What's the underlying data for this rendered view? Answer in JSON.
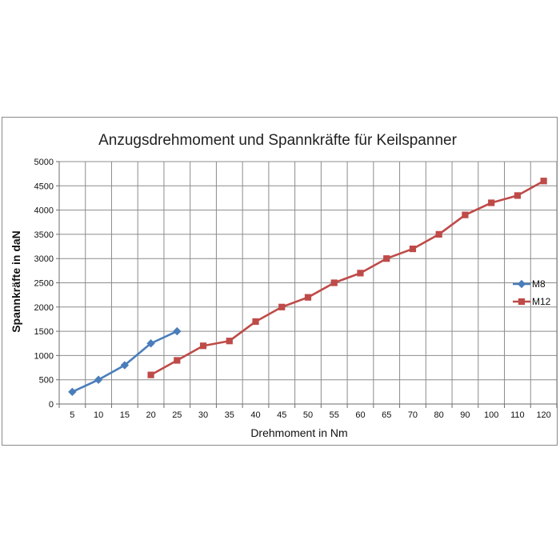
{
  "chart_data": {
    "type": "line",
    "title": "Anzugsdrehmoment und Spannkräfte für Keilspanner",
    "xlabel": "Drehmoment in Nm",
    "ylabel": "Spannkräfte in daN",
    "categories": [
      "5",
      "10",
      "15",
      "20",
      "25",
      "30",
      "35",
      "40",
      "45",
      "50",
      "55",
      "60",
      "65",
      "70",
      "80",
      "90",
      "100",
      "110",
      "120"
    ],
    "ylim": [
      0,
      5000
    ],
    "yticks": [
      "0",
      "500",
      "1000",
      "1500",
      "2000",
      "2500",
      "3000",
      "3500",
      "4000",
      "4500",
      "5000"
    ],
    "grid": true,
    "legend_position": "right",
    "series": [
      {
        "name": "M8",
        "color": "#4a7ebb",
        "marker": "diamond",
        "values": [
          250,
          500,
          800,
          1250,
          1500,
          null,
          null,
          null,
          null,
          null,
          null,
          null,
          null,
          null,
          null,
          null,
          null,
          null,
          null
        ]
      },
      {
        "name": "M12",
        "color": "#be4b48",
        "marker": "square",
        "values": [
          null,
          null,
          null,
          600,
          900,
          1200,
          1300,
          1700,
          2000,
          2200,
          2500,
          2700,
          3000,
          3200,
          3500,
          3900,
          4150,
          4300,
          4600
        ]
      }
    ]
  }
}
